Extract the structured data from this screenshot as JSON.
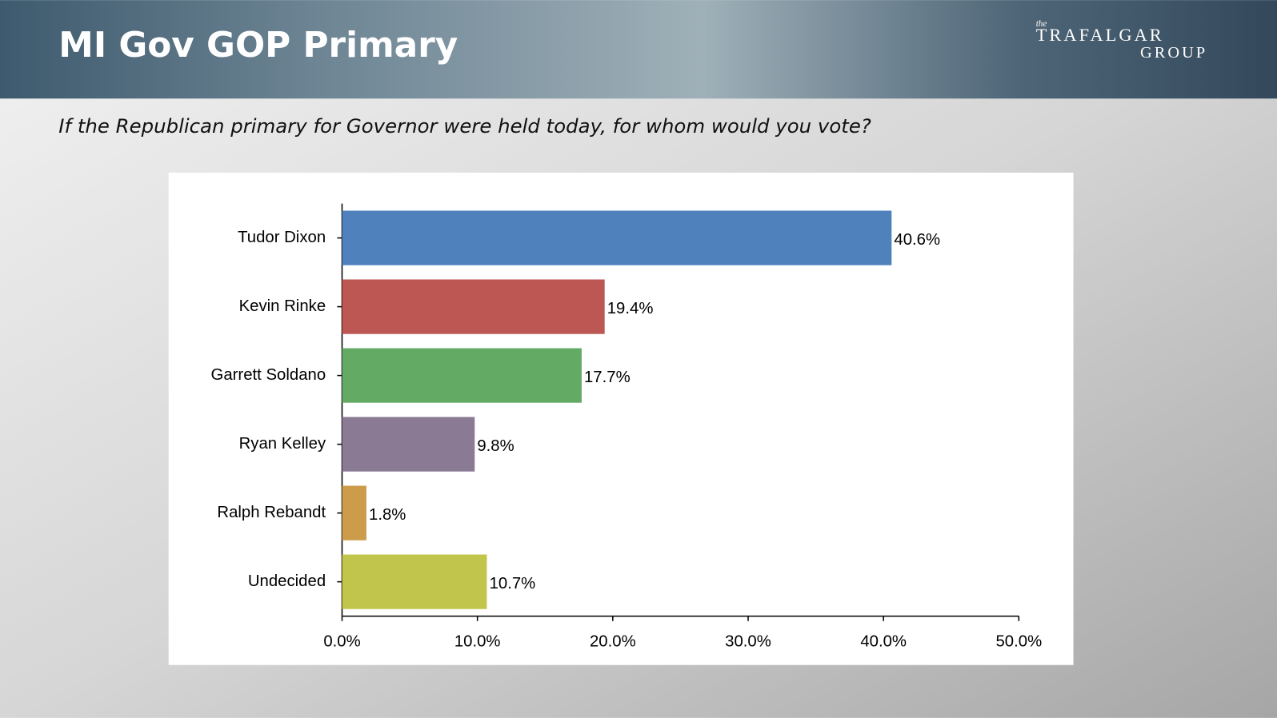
{
  "header": {
    "title": "MI Gov GOP Primary",
    "logo": {
      "small": "the",
      "name": "TRAFALGAR",
      "sub": "GROUP"
    }
  },
  "chart_data": {
    "type": "barh",
    "subtitle": "If the Republican primary for Governor were held today, for whom would you vote?",
    "categories": [
      "Tudor Dixon",
      "Kevin Rinke",
      "Garrett Soldano",
      "Ryan Kelley",
      "Ralph Rebandt",
      "Undecided"
    ],
    "values": [
      40.6,
      19.4,
      17.7,
      9.8,
      1.8,
      10.7
    ],
    "value_labels": [
      "40.6%",
      "19.4%",
      "17.7%",
      "9.8%",
      "1.8%",
      "10.7%"
    ],
    "colors": [
      "#4f81bd",
      "#bc5753",
      "#63aa65",
      "#8a7a94",
      "#cc9c4a",
      "#c2c54b"
    ],
    "xlim": [
      0,
      50
    ],
    "xticks": [
      {
        "value": 0,
        "label": "0.0%"
      },
      {
        "value": 10,
        "label": "10.0%"
      },
      {
        "value": 20,
        "label": "20.0%"
      },
      {
        "value": 30,
        "label": "30.0%"
      },
      {
        "value": 40,
        "label": "40.0%"
      },
      {
        "value": 50,
        "label": "50.0%"
      }
    ],
    "grid": false
  }
}
